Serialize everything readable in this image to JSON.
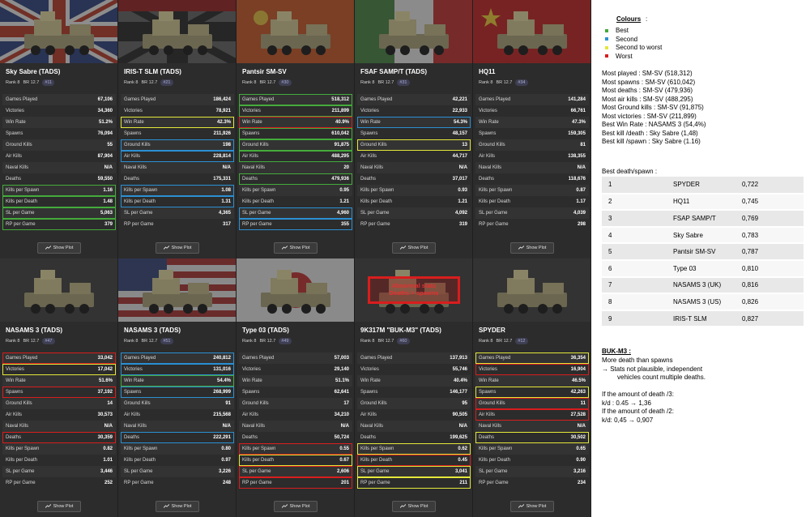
{
  "stat_labels": {
    "games_played": "Games Played",
    "victories": "Victories",
    "win_rate": "Win Rate",
    "spawns": "Spawns",
    "ground_kills": "Ground Kills",
    "air_kills": "Air Kills",
    "naval_kills": "Naval Kills",
    "deaths": "Deaths",
    "kills_per_spawn": "Kills per Spawn",
    "kills_per_death": "Kills per Death",
    "sl_per_game": "SL per Game",
    "rp_per_game": "RP per Game"
  },
  "show_plot_label": "Show Plot",
  "highlight_colors": {
    "best": "#44ab3c",
    "second": "#2b90d3",
    "second_worst": "#e4e83a",
    "worst": "#d81d1d"
  },
  "vehicles": [
    {
      "name": "Sky Sabre (TADS)",
      "rank": "Rank 8",
      "br": "BR 12.7",
      "num": "#11",
      "flag": "uk",
      "values": [
        "67,106",
        "34,360",
        "51.2%",
        "76,094",
        "55",
        "87,904",
        "N/A",
        "59,550",
        "1.16",
        "1.48",
        "5,063",
        "379"
      ],
      "hl": [
        "",
        "",
        "",
        "",
        "",
        "",
        "",
        "",
        "best",
        "best",
        "best",
        "best"
      ]
    },
    {
      "name": "IRIS-T SLM (TADS)",
      "rank": "Rank 8",
      "br": "BR 12.7",
      "num": "#21",
      "flag": "de",
      "values": [
        "186,424",
        "78,921",
        "42.3%",
        "211,926",
        "198",
        "228,814",
        "N/A",
        "175,331",
        "1.08",
        "1.31",
        "4,365",
        "317"
      ],
      "hl": [
        "",
        "",
        "second-worst",
        "",
        "second",
        "second",
        "",
        "",
        "second",
        "second",
        "",
        ""
      ]
    },
    {
      "name": "Pantsir SM-SV",
      "rank": "Rank 8",
      "br": "BR 12.7",
      "num": "#30",
      "flag": "ru",
      "values": [
        "518,312",
        "211,899",
        "40.9%",
        "610,042",
        "91,875",
        "488,295",
        "20",
        "479,936",
        "0.95",
        "1.21",
        "4,960",
        "355"
      ],
      "hl": [
        "best",
        "best",
        "worst",
        "best",
        "best",
        "best",
        "",
        "best",
        "",
        "",
        "second",
        "second"
      ]
    },
    {
      "name": "FSAF SAMP/T (TADS)",
      "rank": "Rank 8",
      "br": "BR 12.7",
      "num": "#31",
      "flag": "it",
      "values": [
        "42,221",
        "22,933",
        "54.3%",
        "48,157",
        "13",
        "44,717",
        "N/A",
        "37,017",
        "0.93",
        "1.21",
        "4,092",
        "319"
      ],
      "hl": [
        "",
        "",
        "second",
        "",
        "second-worst",
        "",
        "",
        "",
        "",
        "",
        "",
        ""
      ]
    },
    {
      "name": "HQ11",
      "rank": "Rank 8",
      "br": "BR 12.7",
      "num": "#34",
      "flag": "cn",
      "values": [
        "141,284",
        "66,761",
        "47.3%",
        "159,305",
        "81",
        "138,355",
        "N/A",
        "118,676",
        "0.87",
        "1.17",
        "4,039",
        "298"
      ],
      "hl": [
        "",
        "",
        "",
        "",
        "",
        "",
        "",
        "",
        "",
        "",
        "",
        ""
      ]
    },
    {
      "name": "NASAMS 3 (TADS)",
      "rank": "Rank 8",
      "br": "BR 12.7",
      "num": "#47",
      "flag": "none",
      "values": [
        "33,042",
        "17,042",
        "51.6%",
        "37,192",
        "14",
        "30,573",
        "N/A",
        "30,359",
        "0.82",
        "1.01",
        "3,446",
        "252"
      ],
      "hl": [
        "worst",
        "second-worst",
        "",
        "worst",
        "",
        "",
        "",
        "worst",
        "",
        "",
        "",
        ""
      ]
    },
    {
      "name": "NASAMS 3 (TADS)",
      "rank": "Rank 8",
      "br": "BR 12.7",
      "num": "#51",
      "flag": "us",
      "values": [
        "240,812",
        "131,016",
        "54.4%",
        "268,999",
        "91",
        "215,568",
        "N/A",
        "222,291",
        "0.80",
        "0.97",
        "3,226",
        "248"
      ],
      "hl": [
        "second",
        "second",
        "best",
        "second",
        "",
        "",
        "",
        "second",
        "",
        "",
        "",
        ""
      ]
    },
    {
      "name": "Type 03 (TADS)",
      "rank": "Rank 8",
      "br": "BR 12.7",
      "num": "#49",
      "flag": "jp",
      "values": [
        "57,003",
        "29,140",
        "51.1%",
        "62,641",
        "17",
        "34,210",
        "N/A",
        "50,724",
        "0.55",
        "0.67",
        "2,606",
        "201"
      ],
      "hl": [
        "",
        "",
        "",
        "",
        "",
        "",
        "",
        "",
        "worst",
        "second-worst",
        "worst",
        "worst"
      ]
    },
    {
      "name": "9K317M \"BUK-M3\" (TADS)",
      "rank": "Rank 8",
      "br": "BR 12.7",
      "num": "#60",
      "flag": "none",
      "values": [
        "137,913",
        "55,746",
        "40.4%",
        "146,177",
        "95",
        "90,505",
        "N/A",
        "199,625",
        "0.62",
        "0.45",
        "3,041",
        "211"
      ],
      "hl": [
        "",
        "",
        "",
        "",
        "",
        "",
        "",
        "",
        "second-worst",
        "worst",
        "second-worst",
        "second-worst"
      ],
      "overlay": [
        "Abnormal stats",
        "Deaths > spawns"
      ]
    },
    {
      "name": "SPYDER",
      "rank": "Rank 8",
      "br": "BR 12.7",
      "num": "#12",
      "flag": "none",
      "values": [
        "36,354",
        "16,904",
        "46.5%",
        "42,263",
        "11",
        "27,528",
        "N/A",
        "30,502",
        "0.65",
        "0.90",
        "3,216",
        "234"
      ],
      "hl": [
        "second-worst",
        "worst",
        "",
        "second-worst",
        "worst",
        "worst",
        "",
        "second-worst",
        "",
        "",
        "",
        ""
      ]
    }
  ],
  "notes": {
    "colours_title": "Colours",
    "colours_tail": " :",
    "legend": [
      {
        "label": "Best",
        "color": "#44ab3c"
      },
      {
        "label": "Second",
        "color": "#2b90d3"
      },
      {
        "label": "Second to worst",
        "color": "#e4e83a"
      },
      {
        "label": "Worst",
        "color": "#d81d1d"
      }
    ],
    "stats": [
      "Most played : SM-SV (518,312)",
      "Most spawns : SM-SV (610,042)",
      "Most deaths : SM-SV (479,936)",
      "Most air kills : SM-SV (488,295)",
      "Most Ground kills : SM-SV (91,875)",
      "Most victories : SM-SV (211,899)",
      "Best Win Rate : NASAMS 3 (54,4%)",
      "Best kill /death : Sky Sabre (1,48)",
      "Best kill /spawn : Sky Sabre (1.16)"
    ],
    "rank_title": "Best death/spawn :",
    "rank_table": [
      [
        "1",
        "SPYDER",
        "0,722"
      ],
      [
        "2",
        "HQ11",
        "0,745"
      ],
      [
        "3",
        "FSAP SAMP/T",
        "0,769"
      ],
      [
        "4",
        "Sky Sabre",
        "0,783"
      ],
      [
        "5",
        "Pantsir SM-SV",
        "0,787"
      ],
      [
        "6",
        "Type 03",
        "0,810"
      ],
      [
        "7",
        "NASAMS 3 (UK)",
        "0,816"
      ],
      [
        "8",
        "NASAMS 3 (US)",
        "0,826"
      ],
      [
        "9",
        "IRIS-T SLM",
        "0,827"
      ]
    ],
    "buk_title": "BUK-M3 :",
    "buk_lines": [
      "More death than spawns",
      "→ Stats not plausible, independent",
      "vehicles count multiple deaths.",
      "",
      "If the amount of death /3:",
      "k/d : 0.45 → 1,36",
      "If the amount of death /2:",
      "k/d: 0,45 → 0,907"
    ]
  }
}
